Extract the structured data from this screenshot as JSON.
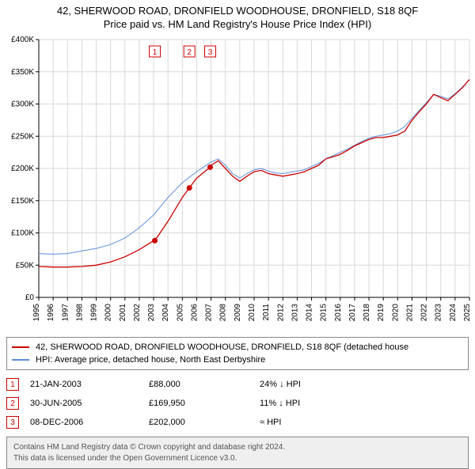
{
  "title_line1": "42, SHERWOOD ROAD, DRONFIELD WOODHOUSE, DRONFIELD, S18 8QF",
  "title_line2": "Price paid vs. HM Land Registry's House Price Index (HPI)",
  "chart": {
    "type": "line",
    "background_color": "#ffffff",
    "grid_color": "#d8d8d8",
    "axis_color": "#000000",
    "tick_font_size": 10,
    "x_years": [
      "1995",
      "1996",
      "1997",
      "1998",
      "1999",
      "2000",
      "2001",
      "2002",
      "2003",
      "2004",
      "2005",
      "2006",
      "2007",
      "2008",
      "2009",
      "2010",
      "2011",
      "2012",
      "2013",
      "2014",
      "2015",
      "2016",
      "2017",
      "2018",
      "2019",
      "2020",
      "2021",
      "2022",
      "2023",
      "2024",
      "2025"
    ],
    "y_ticks": [
      0,
      50000,
      100000,
      150000,
      200000,
      250000,
      300000,
      350000,
      400000
    ],
    "y_tick_labels": [
      "£0",
      "£50K",
      "£100K",
      "£150K",
      "£200K",
      "£250K",
      "£300K",
      "£350K",
      "£400K"
    ],
    "ylim": [
      0,
      400000
    ],
    "series": [
      {
        "name": "price_paid",
        "label": "42, SHERWOOD ROAD, DRONFIELD WOODHOUSE, DRONFIELD, S18 8QF (detached house",
        "color": "#cc0000",
        "line_width": 1.3,
        "points_year_value": [
          [
            1995.0,
            48000
          ],
          [
            1996.0,
            47000
          ],
          [
            1997.0,
            47000
          ],
          [
            1998.0,
            48000
          ],
          [
            1999.0,
            50000
          ],
          [
            2000.0,
            55000
          ],
          [
            2001.0,
            63000
          ],
          [
            2002.0,
            74000
          ],
          [
            2003.0,
            88000
          ],
          [
            2003.08,
            88000
          ],
          [
            2004.0,
            118000
          ],
          [
            2005.0,
            155000
          ],
          [
            2005.49,
            169950
          ],
          [
            2006.0,
            185000
          ],
          [
            2006.94,
            202000
          ],
          [
            2007.0,
            205000
          ],
          [
            2007.5,
            212000
          ],
          [
            2008.0,
            200000
          ],
          [
            2008.5,
            188000
          ],
          [
            2009.0,
            180000
          ],
          [
            2009.5,
            188000
          ],
          [
            2010.0,
            195000
          ],
          [
            2010.5,
            197000
          ],
          [
            2011.0,
            192000
          ],
          [
            2011.5,
            190000
          ],
          [
            2012.0,
            188000
          ],
          [
            2012.5,
            190000
          ],
          [
            2013.0,
            192000
          ],
          [
            2013.5,
            195000
          ],
          [
            2014.0,
            200000
          ],
          [
            2014.5,
            205000
          ],
          [
            2015.0,
            215000
          ],
          [
            2015.5,
            218000
          ],
          [
            2016.0,
            222000
          ],
          [
            2016.5,
            228000
          ],
          [
            2017.0,
            235000
          ],
          [
            2017.5,
            240000
          ],
          [
            2018.0,
            245000
          ],
          [
            2018.5,
            248000
          ],
          [
            2019.0,
            248000
          ],
          [
            2019.5,
            250000
          ],
          [
            2020.0,
            252000
          ],
          [
            2020.5,
            258000
          ],
          [
            2021.0,
            275000
          ],
          [
            2021.5,
            288000
          ],
          [
            2022.0,
            300000
          ],
          [
            2022.5,
            315000
          ],
          [
            2023.0,
            310000
          ],
          [
            2023.5,
            305000
          ],
          [
            2024.0,
            315000
          ],
          [
            2024.5,
            325000
          ],
          [
            2025.0,
            338000
          ]
        ]
      },
      {
        "name": "hpi",
        "label": "HPI: Average price, detached house, North East Derbyshire",
        "color": "#5a8fd6",
        "line_width": 1.0,
        "points_year_value": [
          [
            1995.0,
            68000
          ],
          [
            1996.0,
            67000
          ],
          [
            1997.0,
            68000
          ],
          [
            1998.0,
            72000
          ],
          [
            1999.0,
            76000
          ],
          [
            2000.0,
            82000
          ],
          [
            2001.0,
            92000
          ],
          [
            2002.0,
            108000
          ],
          [
            2003.0,
            128000
          ],
          [
            2004.0,
            155000
          ],
          [
            2005.0,
            178000
          ],
          [
            2006.0,
            195000
          ],
          [
            2007.0,
            210000
          ],
          [
            2007.5,
            215000
          ],
          [
            2008.0,
            205000
          ],
          [
            2008.5,
            192000
          ],
          [
            2009.0,
            185000
          ],
          [
            2009.5,
            192000
          ],
          [
            2010.0,
            198000
          ],
          [
            2010.5,
            200000
          ],
          [
            2011.0,
            196000
          ],
          [
            2011.5,
            193000
          ],
          [
            2012.0,
            192000
          ],
          [
            2012.5,
            194000
          ],
          [
            2013.0,
            196000
          ],
          [
            2013.5,
            198000
          ],
          [
            2014.0,
            203000
          ],
          [
            2014.5,
            208000
          ],
          [
            2015.0,
            215000
          ],
          [
            2015.5,
            220000
          ],
          [
            2016.0,
            225000
          ],
          [
            2016.5,
            230000
          ],
          [
            2017.0,
            236000
          ],
          [
            2017.5,
            242000
          ],
          [
            2018.0,
            247000
          ],
          [
            2018.5,
            250000
          ],
          [
            2019.0,
            252000
          ],
          [
            2019.5,
            254000
          ],
          [
            2020.0,
            258000
          ],
          [
            2020.5,
            265000
          ],
          [
            2021.0,
            278000
          ],
          [
            2021.5,
            290000
          ],
          [
            2022.0,
            302000
          ],
          [
            2022.5,
            315000
          ],
          [
            2023.0,
            312000
          ],
          [
            2023.5,
            308000
          ],
          [
            2024.0,
            316000
          ],
          [
            2024.5,
            326000
          ],
          [
            2025.0,
            338000
          ]
        ]
      }
    ],
    "event_markers": [
      {
        "n": "1",
        "year": 2003.08,
        "value": 88000,
        "color": "#cc0000"
      },
      {
        "n": "2",
        "year": 2005.49,
        "value": 169950,
        "color": "#cc0000"
      },
      {
        "n": "3",
        "year": 2006.94,
        "value": 202000,
        "color": "#cc0000"
      }
    ]
  },
  "legend": {
    "series1_color": "#cc0000",
    "series1_label": "42, SHERWOOD ROAD, DRONFIELD WOODHOUSE, DRONFIELD, S18 8QF (detached house",
    "series2_color": "#5a8fd6",
    "series2_label": "HPI: Average price, detached house, North East Derbyshire"
  },
  "events": [
    {
      "n": "1",
      "color": "#cc0000",
      "date": "21-JAN-2003",
      "price": "£88,000",
      "rel": "24% ↓ HPI"
    },
    {
      "n": "2",
      "color": "#cc0000",
      "date": "30-JUN-2005",
      "price": "£169,950",
      "rel": "11% ↓ HPI"
    },
    {
      "n": "3",
      "color": "#cc0000",
      "date": "08-DEC-2006",
      "price": "£202,000",
      "rel": "≈ HPI"
    }
  ],
  "footer_line1": "Contains HM Land Registry data © Crown copyright and database right 2024.",
  "footer_line2": "This data is licensed under the Open Government Licence v3.0."
}
